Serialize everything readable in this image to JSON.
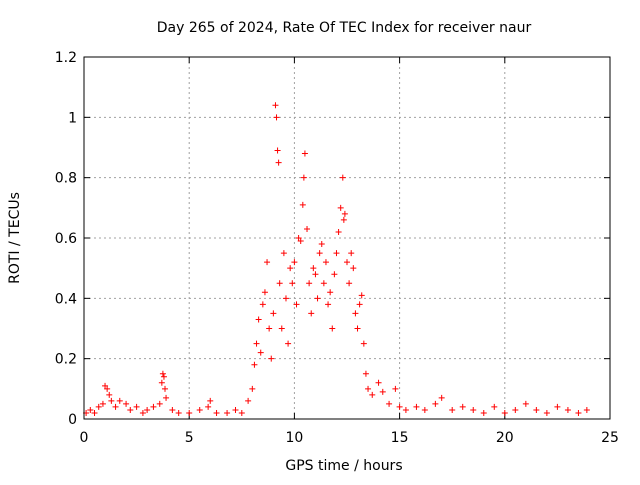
{
  "chart_data": {
    "type": "scatter",
    "title": "Day 265 of 2024, Rate Of TEC Index for receiver naur",
    "xlabel": "GPS time / hours",
    "ylabel": "ROTI / TECUs",
    "xlim": [
      0,
      25
    ],
    "ylim": [
      0,
      1.2
    ],
    "x_ticks": [
      "0",
      "5",
      "10",
      "15",
      "20",
      "25"
    ],
    "y_ticks": [
      "0",
      "0.2",
      "0.4",
      "0.6",
      "0.8",
      "1",
      "1.2"
    ],
    "grid": true,
    "marker": "plus",
    "marker_color": "#ff0000",
    "series": [
      {
        "points": [
          [
            0.1,
            0.02
          ],
          [
            0.3,
            0.03
          ],
          [
            0.5,
            0.02
          ],
          [
            0.7,
            0.04
          ],
          [
            0.9,
            0.05
          ],
          [
            1.0,
            0.11
          ],
          [
            1.1,
            0.1
          ],
          [
            1.2,
            0.08
          ],
          [
            1.3,
            0.06
          ],
          [
            1.5,
            0.04
          ],
          [
            1.7,
            0.06
          ],
          [
            2.0,
            0.05
          ],
          [
            2.2,
            0.03
          ],
          [
            2.5,
            0.04
          ],
          [
            2.8,
            0.02
          ],
          [
            3.0,
            0.03
          ],
          [
            3.3,
            0.04
          ],
          [
            3.6,
            0.05
          ],
          [
            3.7,
            0.12
          ],
          [
            3.75,
            0.15
          ],
          [
            3.8,
            0.14
          ],
          [
            3.85,
            0.1
          ],
          [
            3.9,
            0.07
          ],
          [
            4.2,
            0.03
          ],
          [
            4.5,
            0.02
          ],
          [
            5.0,
            0.02
          ],
          [
            5.5,
            0.03
          ],
          [
            5.9,
            0.04
          ],
          [
            6.0,
            0.06
          ],
          [
            6.3,
            0.02
          ],
          [
            6.8,
            0.02
          ],
          [
            7.2,
            0.03
          ],
          [
            7.5,
            0.02
          ],
          [
            7.8,
            0.06
          ],
          [
            8.0,
            0.1
          ],
          [
            8.1,
            0.18
          ],
          [
            8.2,
            0.25
          ],
          [
            8.3,
            0.33
          ],
          [
            8.4,
            0.22
          ],
          [
            8.5,
            0.38
          ],
          [
            8.6,
            0.42
          ],
          [
            8.7,
            0.52
          ],
          [
            8.8,
            0.3
          ],
          [
            8.9,
            0.2
          ],
          [
            9.0,
            0.35
          ],
          [
            9.1,
            1.04
          ],
          [
            9.15,
            1.0
          ],
          [
            9.2,
            0.89
          ],
          [
            9.25,
            0.85
          ],
          [
            9.3,
            0.45
          ],
          [
            9.4,
            0.3
          ],
          [
            9.5,
            0.55
          ],
          [
            9.6,
            0.4
          ],
          [
            9.7,
            0.25
          ],
          [
            9.8,
            0.5
          ],
          [
            9.9,
            0.45
          ],
          [
            10.0,
            0.52
          ],
          [
            10.1,
            0.38
          ],
          [
            10.2,
            0.6
          ],
          [
            10.3,
            0.59
          ],
          [
            10.4,
            0.71
          ],
          [
            10.45,
            0.8
          ],
          [
            10.5,
            0.88
          ],
          [
            10.6,
            0.63
          ],
          [
            10.7,
            0.45
          ],
          [
            10.8,
            0.35
          ],
          [
            10.9,
            0.5
          ],
          [
            11.0,
            0.48
          ],
          [
            11.1,
            0.4
          ],
          [
            11.2,
            0.55
          ],
          [
            11.3,
            0.58
          ],
          [
            11.4,
            0.45
          ],
          [
            11.5,
            0.52
          ],
          [
            11.6,
            0.38
          ],
          [
            11.7,
            0.42
          ],
          [
            11.8,
            0.3
          ],
          [
            11.9,
            0.48
          ],
          [
            12.0,
            0.55
          ],
          [
            12.1,
            0.62
          ],
          [
            12.2,
            0.7
          ],
          [
            12.3,
            0.8
          ],
          [
            12.35,
            0.66
          ],
          [
            12.4,
            0.68
          ],
          [
            12.5,
            0.52
          ],
          [
            12.6,
            0.45
          ],
          [
            12.7,
            0.55
          ],
          [
            12.8,
            0.5
          ],
          [
            12.9,
            0.35
          ],
          [
            13.0,
            0.3
          ],
          [
            13.1,
            0.38
          ],
          [
            13.2,
            0.41
          ],
          [
            13.3,
            0.25
          ],
          [
            13.4,
            0.15
          ],
          [
            13.5,
            0.1
          ],
          [
            13.7,
            0.08
          ],
          [
            14.0,
            0.12
          ],
          [
            14.2,
            0.09
          ],
          [
            14.5,
            0.05
          ],
          [
            14.8,
            0.1
          ],
          [
            15.0,
            0.04
          ],
          [
            15.3,
            0.03
          ],
          [
            15.8,
            0.04
          ],
          [
            16.2,
            0.03
          ],
          [
            16.7,
            0.05
          ],
          [
            17.0,
            0.07
          ],
          [
            17.5,
            0.03
          ],
          [
            18.0,
            0.04
          ],
          [
            18.5,
            0.03
          ],
          [
            19.0,
            0.02
          ],
          [
            19.5,
            0.04
          ],
          [
            20.0,
            0.02
          ],
          [
            20.5,
            0.03
          ],
          [
            21.0,
            0.05
          ],
          [
            21.5,
            0.03
          ],
          [
            22.0,
            0.02
          ],
          [
            22.5,
            0.04
          ],
          [
            23.0,
            0.03
          ],
          [
            23.5,
            0.02
          ],
          [
            23.9,
            0.03
          ]
        ]
      }
    ]
  }
}
